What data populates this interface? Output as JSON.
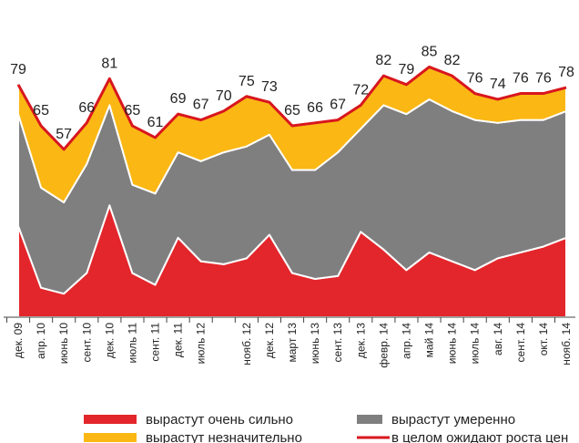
{
  "chart_data": {
    "type": "stacked_area",
    "categories": [
      "дек. 09",
      "апр. 10",
      "июнь 10",
      "сент. 10",
      "дек. 10",
      "июль 11",
      "сент. 11",
      "дек. 11",
      "июль 12",
      null,
      "нояб. 12",
      "дек. 12",
      "март 13",
      "июнь 13",
      "сент. 13",
      "дек. 13",
      "февр. 14",
      "апр. 14",
      "май 14",
      "июнь 14",
      "июль 14",
      "авг. 14",
      "сент. 14",
      "окт. 14",
      "нояб. 14"
    ],
    "series": [
      {
        "name": "вырастут очень сильно",
        "color": "#e3262b",
        "values": [
          31,
          10,
          8,
          15,
          38,
          15,
          11,
          27,
          19,
          18,
          20,
          28,
          15,
          13,
          14,
          29,
          23,
          16,
          22,
          19,
          16,
          20,
          22,
          24,
          27
        ]
      },
      {
        "name": "вырастут умеренно",
        "color": "#7f7f7f",
        "values": [
          38,
          34,
          31,
          37,
          34,
          30,
          31,
          29,
          34,
          38,
          38,
          34,
          35,
          37,
          42,
          35,
          49,
          53,
          52,
          51,
          51,
          46,
          45,
          43,
          43
        ]
      },
      {
        "name": "вырастут незначительно",
        "color": "#fbb714",
        "values": [
          10,
          21,
          18,
          14,
          9,
          20,
          19,
          13,
          14,
          14,
          17,
          11,
          15,
          16,
          11,
          8,
          10,
          10,
          11,
          12,
          9,
          8,
          9,
          9,
          8
        ]
      },
      {
        "name": "в целом ожидают роста цен",
        "color": "#d8161e",
        "type": "line",
        "values": [
          79,
          65,
          57,
          66,
          81,
          65,
          61,
          69,
          67,
          70,
          75,
          73,
          65,
          66,
          67,
          72,
          82,
          79,
          85,
          82,
          76,
          74,
          76,
          76,
          78
        ]
      }
    ],
    "ylim": [
      0,
      100
    ]
  }
}
